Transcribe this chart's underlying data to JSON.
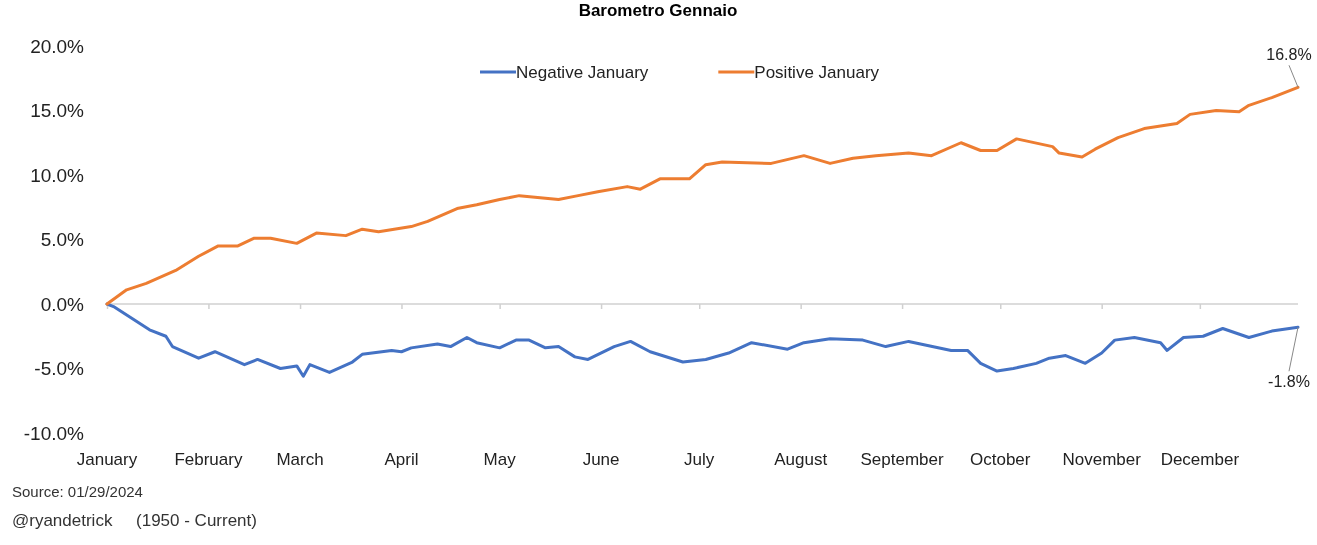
{
  "chart_data": {
    "type": "line",
    "title": "Barometro Gennaio",
    "xlim": [
      "--01-01",
      "--12-31"
    ],
    "xticks": [
      {
        "value": "--01-01",
        "label": "January"
      },
      {
        "value": "--02-01",
        "label": "February"
      },
      {
        "value": "--03-01",
        "label": "March"
      },
      {
        "value": "--04-01",
        "label": "April"
      },
      {
        "value": "--05-01",
        "label": "May"
      },
      {
        "value": "--06-01",
        "label": "June"
      },
      {
        "value": "--07-01",
        "label": "July"
      },
      {
        "value": "--08-01",
        "label": "August"
      },
      {
        "value": "--09-01",
        "label": "September"
      },
      {
        "value": "--10-01",
        "label": "October"
      },
      {
        "value": "--11-01",
        "label": "November"
      },
      {
        "value": "--12-01",
        "label": "December"
      }
    ],
    "ylim": [
      -10,
      20
    ],
    "yticks": [
      {
        "value": -10,
        "label": "-10.0%"
      },
      {
        "value": -5,
        "label": "-5.0%"
      },
      {
        "value": 0,
        "label": "0.0%"
      },
      {
        "value": 5,
        "label": "5.0%"
      },
      {
        "value": 10,
        "label": "10.0%"
      },
      {
        "value": 15,
        "label": "15.0%"
      },
      {
        "value": 20,
        "label": "20.0%"
      }
    ],
    "ref_lines": [
      {
        "axis": "y",
        "value": 0,
        "color": "#d0d0d0"
      }
    ],
    "grid": false,
    "legend": "top",
    "marker": "none",
    "line_style": "solid",
    "series": [
      {
        "name": "Negative January",
        "color": "#4472c4",
        "x": [
          "--01-01",
          "--01-03",
          "--01-14",
          "--01-19",
          "--01-21",
          "--01-29",
          "--02-03",
          "--02-12",
          "--02-16",
          "--02-23",
          "--02-28",
          "--03-02",
          "--03-04",
          "--03-10",
          "--03-17",
          "--03-20",
          "--03-29",
          "--04-01",
          "--04-04",
          "--04-12",
          "--04-16",
          "--04-21",
          "--04-24",
          "--05-01",
          "--05-06",
          "--05-10",
          "--05-15",
          "--05-19",
          "--05-24",
          "--05-28",
          "--06-05",
          "--06-10",
          "--06-16",
          "--06-26",
          "--07-03",
          "--07-10",
          "--07-17",
          "--07-28",
          "--08-02",
          "--08-10",
          "--08-20",
          "--08-27",
          "--09-03",
          "--09-16",
          "--09-21",
          "--09-25",
          "--09-30",
          "--10-05",
          "--10-12",
          "--10-16",
          "--10-21",
          "--10-27",
          "--11-01",
          "--11-05",
          "--11-11",
          "--11-19",
          "--11-21",
          "--11-26",
          "--12-02",
          "--12-08",
          "--12-16",
          "--12-23",
          "--12-31"
        ],
        "values": [
          0,
          -0.2,
          -2.0,
          -2.5,
          -3.3,
          -4.2,
          -3.7,
          -4.7,
          -4.3,
          -5.0,
          -4.8,
          -5.6,
          -4.7,
          -5.3,
          -4.5,
          -3.9,
          -3.6,
          -3.7,
          -3.4,
          -3.1,
          -3.3,
          -2.6,
          -3.0,
          -3.4,
          -2.8,
          -2.8,
          -3.4,
          -3.3,
          -4.1,
          -4.3,
          -3.3,
          -2.9,
          -3.7,
          -4.5,
          -4.3,
          -3.8,
          -3.0,
          -3.5,
          -3.0,
          -2.7,
          -2.8,
          -3.3,
          -2.9,
          -3.6,
          -3.6,
          -4.6,
          -5.2,
          -5.0,
          -4.6,
          -4.2,
          -4.0,
          -4.6,
          -3.8,
          -2.8,
          -2.6,
          -3.0,
          -3.6,
          -2.6,
          -2.5,
          -1.9,
          -2.6,
          -2.1,
          -1.8
        ]
      },
      {
        "name": "Positive January",
        "color": "#ed7d31",
        "x": [
          "--01-01",
          "--01-07",
          "--01-13",
          "--01-22",
          "--01-29",
          "--02-04",
          "--02-10",
          "--02-15",
          "--02-20",
          "--02-28",
          "--03-06",
          "--03-15",
          "--03-20",
          "--03-25",
          "--04-04",
          "--04-09",
          "--04-18",
          "--04-24",
          "--05-01",
          "--05-07",
          "--05-19",
          "--05-25",
          "--05-31",
          "--06-09",
          "--06-13",
          "--06-19",
          "--06-28",
          "--07-03",
          "--07-08",
          "--07-23",
          "--08-02",
          "--08-10",
          "--08-17",
          "--08-24",
          "--09-03",
          "--09-10",
          "--09-19",
          "--09-25",
          "--09-30",
          "--10-06",
          "--10-17",
          "--10-19",
          "--10-26",
          "--10-30",
          "--11-06",
          "--11-14",
          "--11-24",
          "--11-28",
          "--12-06",
          "--12-13",
          "--12-16",
          "--12-23",
          "--12-31"
        ],
        "values": [
          0,
          1.1,
          1.6,
          2.6,
          3.7,
          4.5,
          4.5,
          5.1,
          5.1,
          4.7,
          5.5,
          5.3,
          5.8,
          5.6,
          6.0,
          6.4,
          7.4,
          7.7,
          8.1,
          8.4,
          8.1,
          8.4,
          8.7,
          9.1,
          8.9,
          9.7,
          9.7,
          10.8,
          11.0,
          10.9,
          11.5,
          10.9,
          11.3,
          11.5,
          11.7,
          11.5,
          12.5,
          11.9,
          11.9,
          12.8,
          12.2,
          11.7,
          11.4,
          12.0,
          12.9,
          13.6,
          14.0,
          14.7,
          15.0,
          14.9,
          15.4,
          16.0,
          16.8
        ]
      }
    ],
    "annotations": [
      {
        "text": "16.8%",
        "x": "--12-31",
        "y": 16.8
      },
      {
        "text": "-1.8%",
        "x": "--12-31",
        "y": -1.8
      },
      "Source: 01/29/2024",
      "@ryandetrick     (1950 - Current)"
    ]
  }
}
